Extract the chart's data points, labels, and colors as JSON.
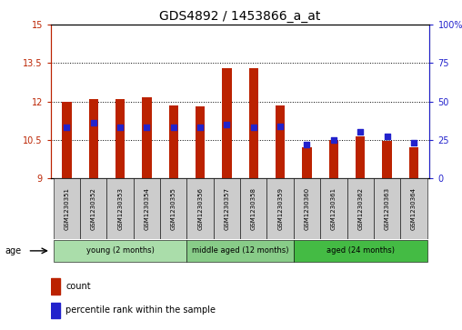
{
  "title": "GDS4892 / 1453866_a_at",
  "samples": [
    "GSM1230351",
    "GSM1230352",
    "GSM1230353",
    "GSM1230354",
    "GSM1230355",
    "GSM1230356",
    "GSM1230357",
    "GSM1230358",
    "GSM1230359",
    "GSM1230360",
    "GSM1230361",
    "GSM1230362",
    "GSM1230363",
    "GSM1230364"
  ],
  "counts": [
    12.0,
    12.1,
    12.1,
    12.15,
    11.85,
    11.8,
    13.3,
    13.3,
    11.85,
    10.2,
    10.5,
    10.65,
    10.45,
    10.2
  ],
  "percentile_ranks": [
    33,
    36,
    33,
    33,
    33,
    33,
    35,
    33,
    34,
    22,
    25,
    30,
    27,
    23
  ],
  "ymin": 9,
  "ymax": 15,
  "yticks_left": [
    9,
    10.5,
    12,
    13.5,
    15
  ],
  "yticks_right": [
    0,
    25,
    50,
    75,
    100
  ],
  "bar_color": "#bb2200",
  "dot_color": "#2222cc",
  "bar_width": 0.35,
  "groups": [
    {
      "label": "young (2 months)",
      "start": 0,
      "end": 5,
      "color": "#aaddaa"
    },
    {
      "label": "middle aged (12 months)",
      "start": 5,
      "end": 9,
      "color": "#88cc88"
    },
    {
      "label": "aged (24 months)",
      "start": 9,
      "end": 14,
      "color": "#44bb44"
    }
  ],
  "age_label": "age",
  "legend_count_label": "count",
  "legend_pct_label": "percentile rank within the sample",
  "title_fontsize": 10,
  "tick_fontsize": 7,
  "label_fontsize": 7,
  "sample_box_color": "#cccccc",
  "background_color": "#ffffff"
}
